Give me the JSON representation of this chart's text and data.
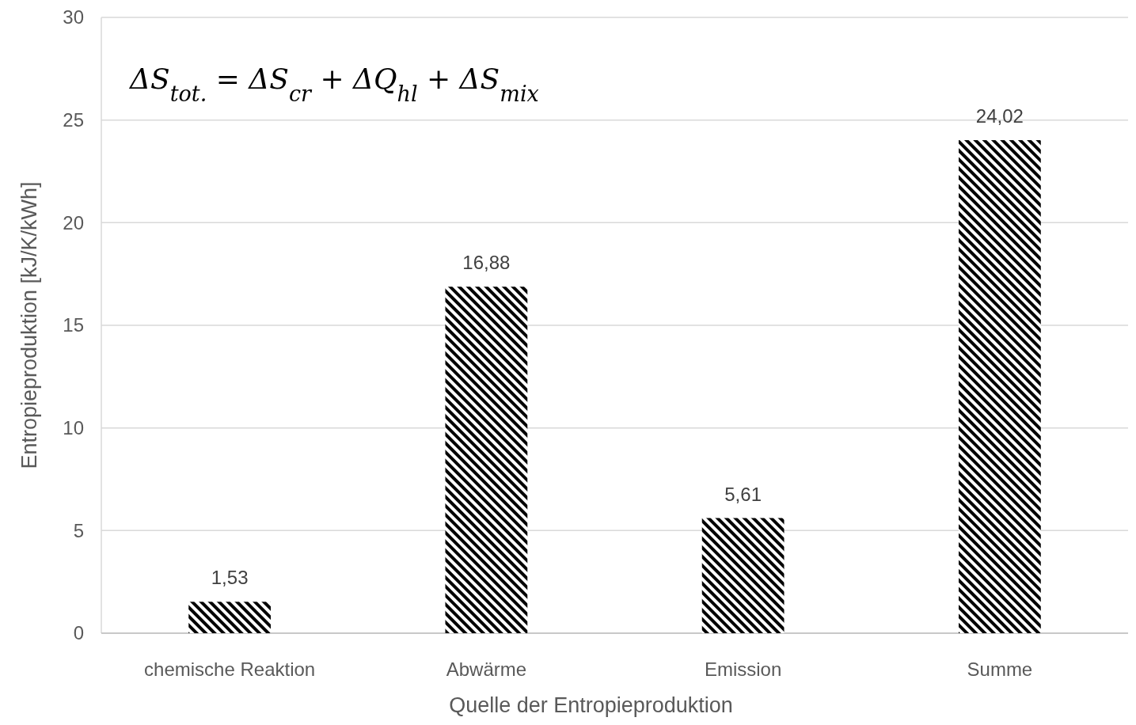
{
  "chart_data": {
    "type": "bar",
    "xlabel": "Quelle der Entropieproduktion",
    "ylabel": "Entropieproduktion [kJ/K/kWh]",
    "categories": [
      "chemische Reaktion",
      "Abwärme",
      "Emission",
      "Summe"
    ],
    "values": [
      1.53,
      16.88,
      5.61,
      24.02
    ],
    "value_labels": [
      "1,53",
      "16,88",
      "5,61",
      "24,02"
    ],
    "color": "#000000",
    "ylim": [
      0,
      30
    ],
    "yticks": [
      0,
      5,
      10,
      15,
      20,
      25,
      30
    ],
    "grid": "y",
    "annotations": [
      "ΔS$_{tot.}$ = ΔS$_{cr}$ + ΔQ$_{hl}$ + ΔS$_{mix}$"
    ]
  }
}
